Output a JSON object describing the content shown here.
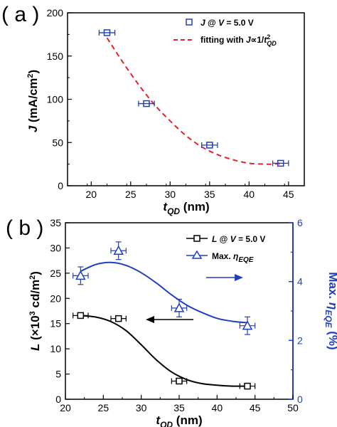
{
  "chart_data": [
    {
      "panel": "( a )",
      "type": "scatter",
      "xlabel": "t_QD (nm)",
      "ylabel": "J (mA/cm²)",
      "xlim": [
        17,
        47
      ],
      "ylim": [
        0,
        200
      ],
      "xticks": [
        20,
        25,
        30,
        35,
        40,
        45
      ],
      "yticks": [
        0,
        50,
        100,
        150,
        200
      ],
      "series": [
        {
          "name": "J @ V = 5.0 V",
          "color": "#1f3fbf",
          "marker": "square",
          "x": [
            22,
            27,
            35,
            44
          ],
          "y": [
            177,
            95,
            47,
            26
          ],
          "xerr": [
            1,
            1,
            1,
            1
          ]
        },
        {
          "name": "fitting with J∝1/t²QD",
          "color": "#e8202a",
          "style": "dashed",
          "x": [
            22,
            24,
            26,
            28,
            30,
            32,
            34,
            36,
            38,
            40,
            42,
            43,
            44
          ],
          "y": [
            171,
            143,
            117,
            94,
            75,
            58,
            45,
            36,
            30,
            26,
            25,
            25,
            26
          ]
        }
      ],
      "legend": "top-right"
    },
    {
      "panel": "( b )",
      "type": "scatter",
      "xlabel": "t_QD (nm)",
      "ylabel": "L (×10³ cd/m²)",
      "y2label": "Max. η_EQE (%)",
      "xlim": [
        20,
        50
      ],
      "ylim": [
        0,
        35
      ],
      "y2lim": [
        0,
        6
      ],
      "xticks": [
        20,
        25,
        30,
        35,
        40,
        45,
        50
      ],
      "yticks": [
        0,
        5,
        10,
        15,
        20,
        25,
        30,
        35
      ],
      "y2ticks": [
        0,
        2,
        4,
        6
      ],
      "series": [
        {
          "name": "L @ V = 5.0 V",
          "color": "#000000",
          "marker": "square-open",
          "axis": "left",
          "x": [
            22,
            27,
            35,
            44
          ],
          "y": [
            16.6,
            16.0,
            3.6,
            2.6
          ],
          "xerr": [
            1,
            1,
            1,
            1
          ],
          "fit_x": [
            22,
            24,
            26,
            28,
            30,
            32,
            34,
            36,
            38,
            40,
            42,
            44
          ],
          "fit_y": [
            16.6,
            16.3,
            15.4,
            13.6,
            10.8,
            7.8,
            5.4,
            3.9,
            3.1,
            2.8,
            2.6,
            2.6
          ]
        },
        {
          "name": "Max. η_EQE",
          "color": "#1f3fbf",
          "marker": "triangle-open",
          "axis": "right",
          "x": [
            22,
            27,
            35,
            44
          ],
          "y": [
            4.2,
            5.05,
            3.1,
            2.5
          ],
          "xerr": [
            1,
            1,
            1,
            1
          ],
          "yerr": [
            0.3,
            0.3,
            0.3,
            0.3
          ],
          "fit_x": [
            22,
            24,
            26,
            28,
            30,
            32,
            34,
            36,
            38,
            40,
            42,
            44
          ],
          "fit_y": [
            4.35,
            4.58,
            4.65,
            4.55,
            4.3,
            3.95,
            3.55,
            3.2,
            2.95,
            2.75,
            2.65,
            2.6
          ]
        }
      ],
      "legend": "top-right",
      "annotations": [
        "arrow-left toward left axis",
        "arrow-right toward right axis"
      ]
    }
  ]
}
